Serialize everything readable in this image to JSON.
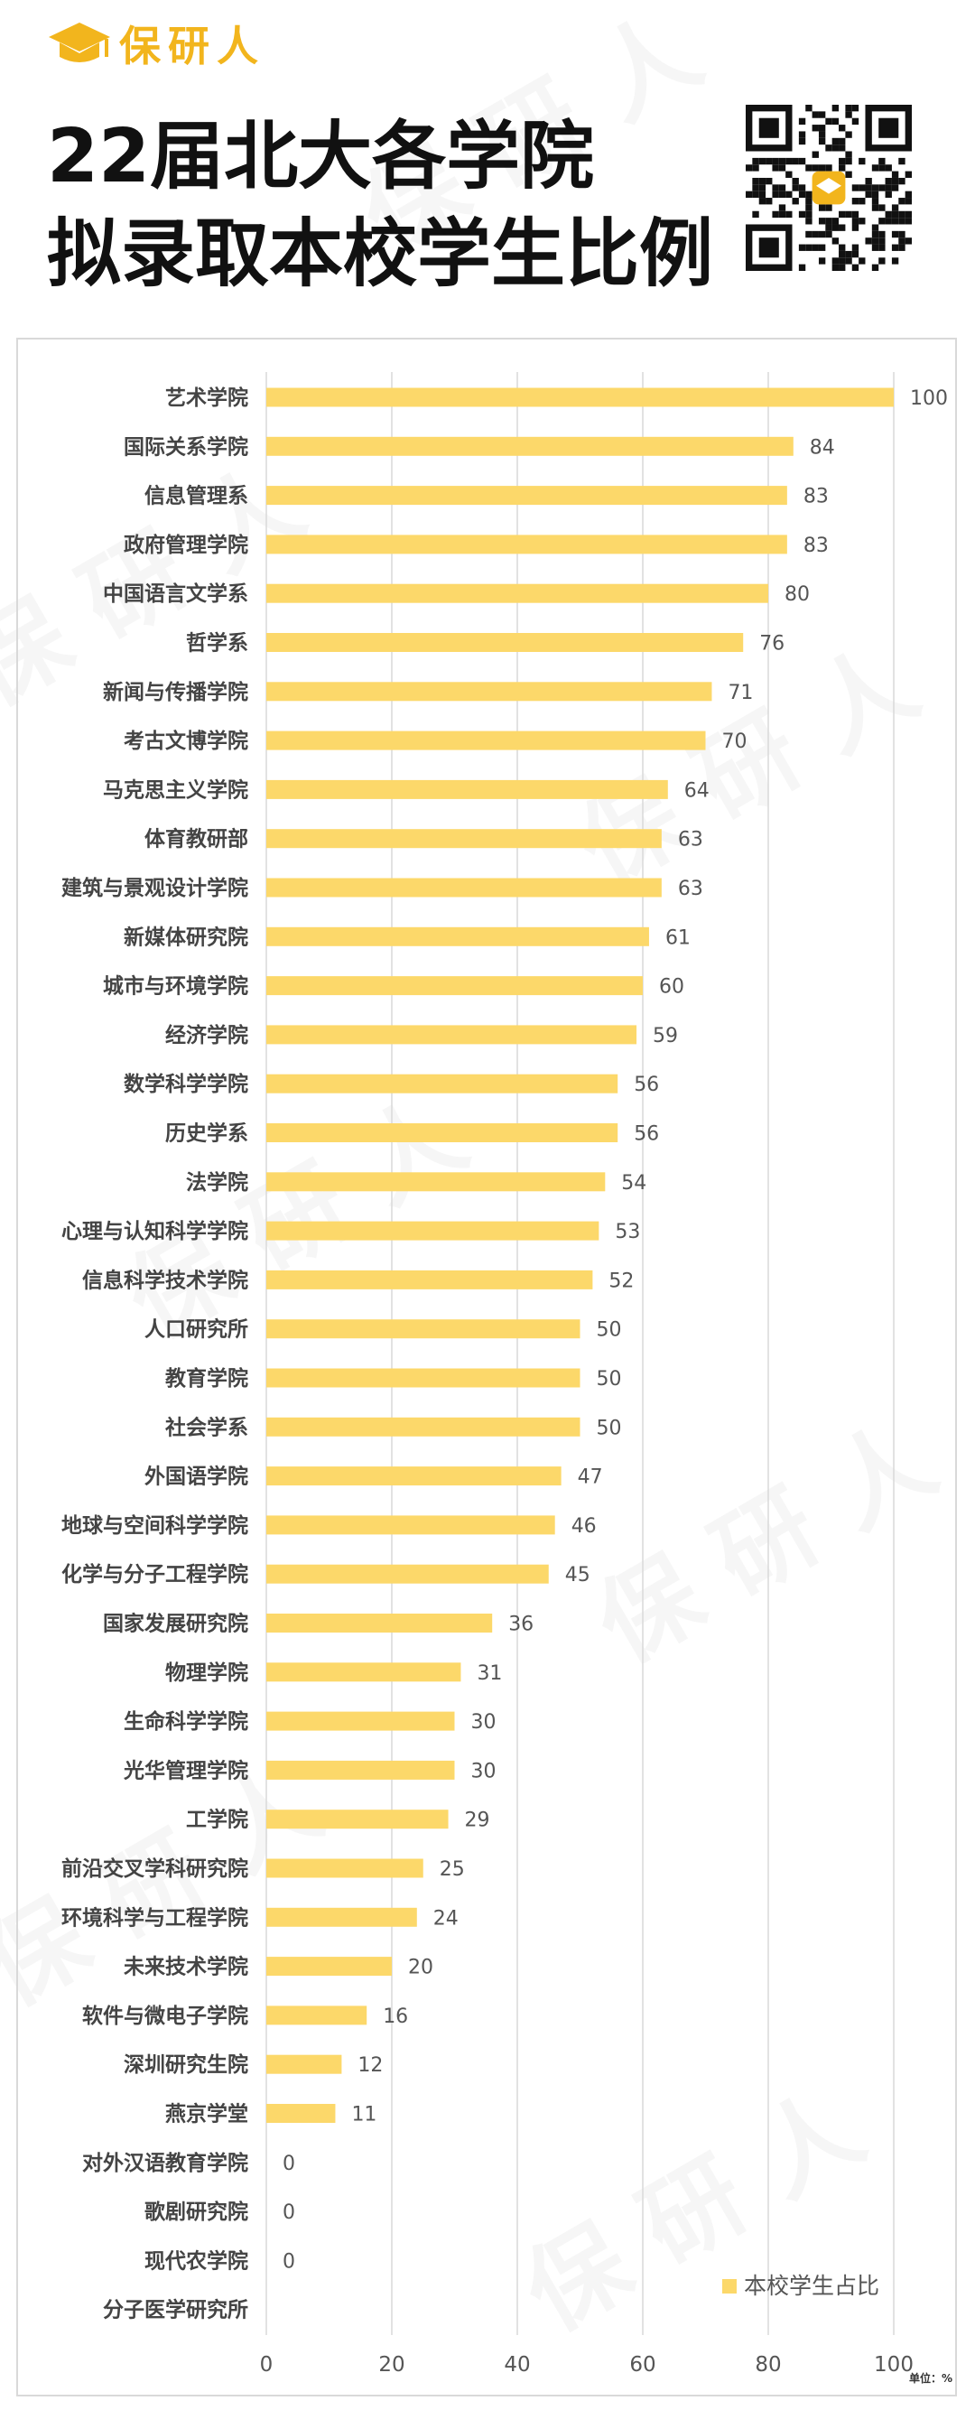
{
  "brand": {
    "name": "保研人"
  },
  "title": {
    "line1": "22届北大各学院",
    "line2": "拟录取本校学生比例"
  },
  "chart_data": {
    "type": "bar",
    "orientation": "horizontal",
    "title": "",
    "xlabel": "",
    "ylabel": "",
    "xlim": [
      0,
      100
    ],
    "x_ticks": [
      0,
      20,
      40,
      60,
      80,
      100
    ],
    "grid": true,
    "legend": "bottom-right",
    "unit": "单位：%",
    "series_color": "#fcd86a",
    "categories": [
      "艺术学院",
      "国际关系学院",
      "信息管理系",
      "政府管理学院",
      "中国语言文学系",
      "哲学系",
      "新闻与传播学院",
      "考古文博学院",
      "马克思主义学院",
      "体育教研部",
      "建筑与景观设计学院",
      "新媒体研究院",
      "城市与环境学院",
      "经济学院",
      "数学科学学院",
      "历史学系",
      "法学院",
      "心理与认知科学学院",
      "信息科学技术学院",
      "人口研究所",
      "教育学院",
      "社会学系",
      "外国语学院",
      "地球与空间科学学院",
      "化学与分子工程学院",
      "国家发展研究院",
      "物理学院",
      "生命科学学院",
      "光华管理学院",
      "工学院",
      "前沿交叉学科研究院",
      "环境科学与工程学院",
      "未来技术学院",
      "软件与微电子学院",
      "深圳研究生院",
      "燕京学堂",
      "对外汉语教育学院",
      "歌剧研究院",
      "现代农学院",
      "分子医学研究所"
    ],
    "series": [
      {
        "name": "本校学生占比",
        "values": [
          100,
          84,
          83,
          83,
          80,
          76,
          71,
          70,
          64,
          63,
          63,
          61,
          60,
          59,
          56,
          56,
          54,
          53,
          52,
          50,
          50,
          50,
          47,
          46,
          45,
          36,
          31,
          30,
          30,
          29,
          25,
          24,
          20,
          16,
          12,
          11,
          0,
          0,
          0,
          null
        ],
        "labels": [
          "100",
          "84",
          "83",
          "83",
          "80",
          "76",
          "71",
          "70",
          "64",
          "63",
          "63",
          "61",
          "60",
          "59",
          "56",
          "56",
          "54",
          "53",
          "52",
          "50",
          "50",
          "50",
          "47",
          "46",
          "45",
          "36",
          "31",
          "30",
          "30",
          "29",
          "25",
          "24",
          "20",
          "16",
          "12",
          "11",
          "0",
          "0",
          "0",
          ""
        ]
      }
    ]
  }
}
